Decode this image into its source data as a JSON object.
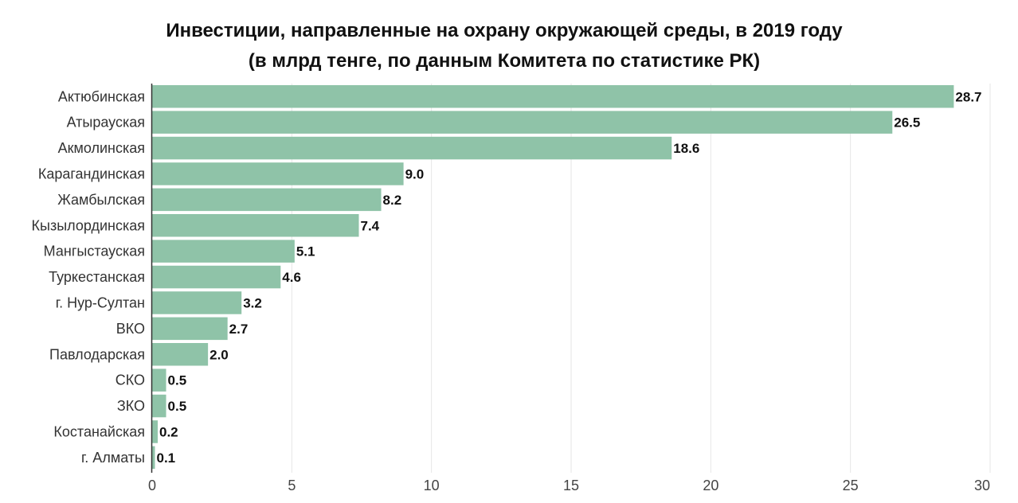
{
  "chart_data": {
    "type": "bar",
    "orientation": "horizontal",
    "title": "Инвестиции, направленные на охрану окружающей среды, в 2019 году",
    "subtitle": "(в млрд тенге, по данным Комитета по статистике РК)",
    "categories": [
      "Актюбинская",
      "Атырауская",
      "Акмолинская",
      "Карагандинская",
      "Жамбылская",
      "Кызылординская",
      "Мангыстауская",
      "Туркестанская",
      "г. Нур-Султан",
      "ВКО",
      "Павлодарская",
      "СКО",
      "ЗКО",
      "Костанайская",
      "г. Алматы"
    ],
    "values": [
      28.7,
      26.5,
      18.6,
      9.0,
      8.2,
      7.4,
      5.1,
      4.6,
      3.2,
      2.7,
      2.0,
      0.5,
      0.5,
      0.2,
      0.1
    ],
    "value_labels": [
      "28.7",
      "26.5",
      "18.6",
      "9.0",
      "8.2",
      "7.4",
      "5.1",
      "4.6",
      "3.2",
      "2.7",
      "2.0",
      "0.5",
      "0.5",
      "0.2",
      "0.1"
    ],
    "xlim": [
      0,
      30
    ],
    "xticks": [
      0,
      5,
      10,
      15,
      20,
      25,
      30
    ],
    "xtick_labels": [
      "0",
      "5",
      "10",
      "15",
      "20",
      "25",
      "30"
    ],
    "grid": "vertical",
    "legend": "none",
    "bar_color": "#8fc3a8",
    "text_color": "#111111"
  }
}
